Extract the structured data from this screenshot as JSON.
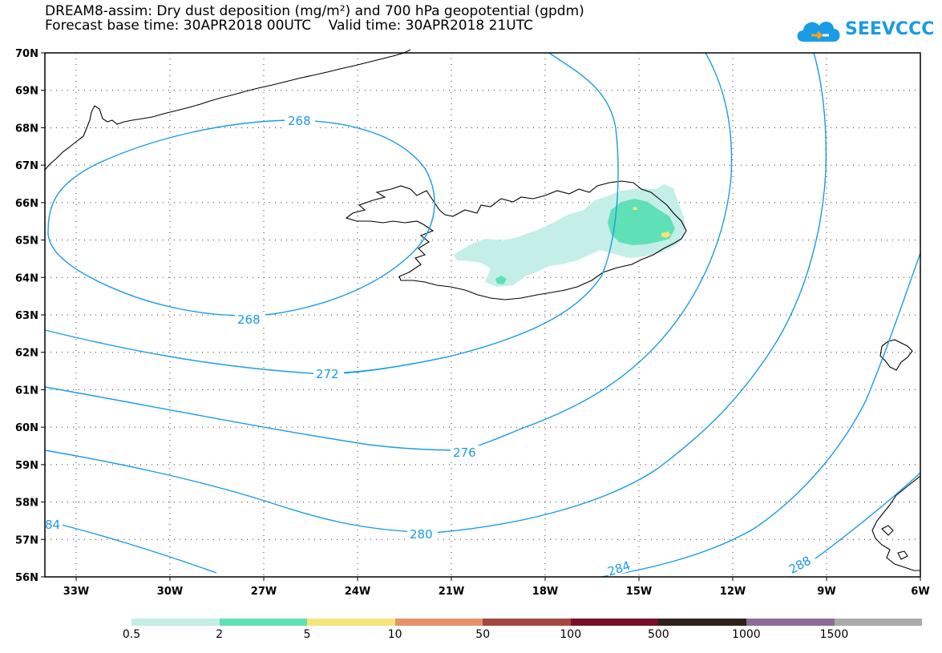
{
  "title": {
    "line1": "DREAM8-assim: Dry dust deposition (mg/m²) and 700 hPa geopotential (gpdm)",
    "line2": "Forecast base time: 30APR2018 00UTC    Valid time: 30APR2018 21UTC"
  },
  "logo": {
    "text": "SEEVCCC",
    "icon": "cloud-logo-icon"
  },
  "axes": {
    "lat_labels": [
      "70N",
      "69N",
      "68N",
      "67N",
      "66N",
      "65N",
      "64N",
      "63N",
      "62N",
      "61N",
      "60N",
      "59N",
      "58N",
      "57N",
      "56N"
    ],
    "lat_values": [
      70,
      69,
      68,
      67,
      66,
      65,
      64,
      63,
      62,
      61,
      60,
      59,
      58,
      57,
      56
    ],
    "lon_labels": [
      "33W",
      "30W",
      "27W",
      "24W",
      "21W",
      "18W",
      "15W",
      "12W",
      "9W",
      "6W"
    ],
    "lon_values": [
      -33,
      -30,
      -27,
      -24,
      -21,
      -18,
      -15,
      -12,
      -9,
      -6
    ],
    "lon_range": [
      -34,
      -6
    ],
    "lat_range": [
      56,
      70
    ],
    "grid": "dotted"
  },
  "contours": {
    "color": "#1a9be6",
    "labels": [
      "268",
      "268",
      "272",
      "276",
      "280",
      "284",
      "288",
      "84"
    ]
  },
  "dust_colors": {
    "light": "#c3efe8",
    "mid": "#5fe0b6",
    "yellow": "#f6e47a"
  },
  "colorbar": {
    "colors": [
      "#c3efe8",
      "#5fe0b6",
      "#f6e47a",
      "#e8906a",
      "#a4473e",
      "#7a0e25",
      "#2e2118",
      "#8e6a9a",
      "#aaaaaa"
    ],
    "labels": [
      "0.5",
      "2",
      "5",
      "10",
      "50",
      "100",
      "500",
      "1000",
      "1500"
    ]
  }
}
